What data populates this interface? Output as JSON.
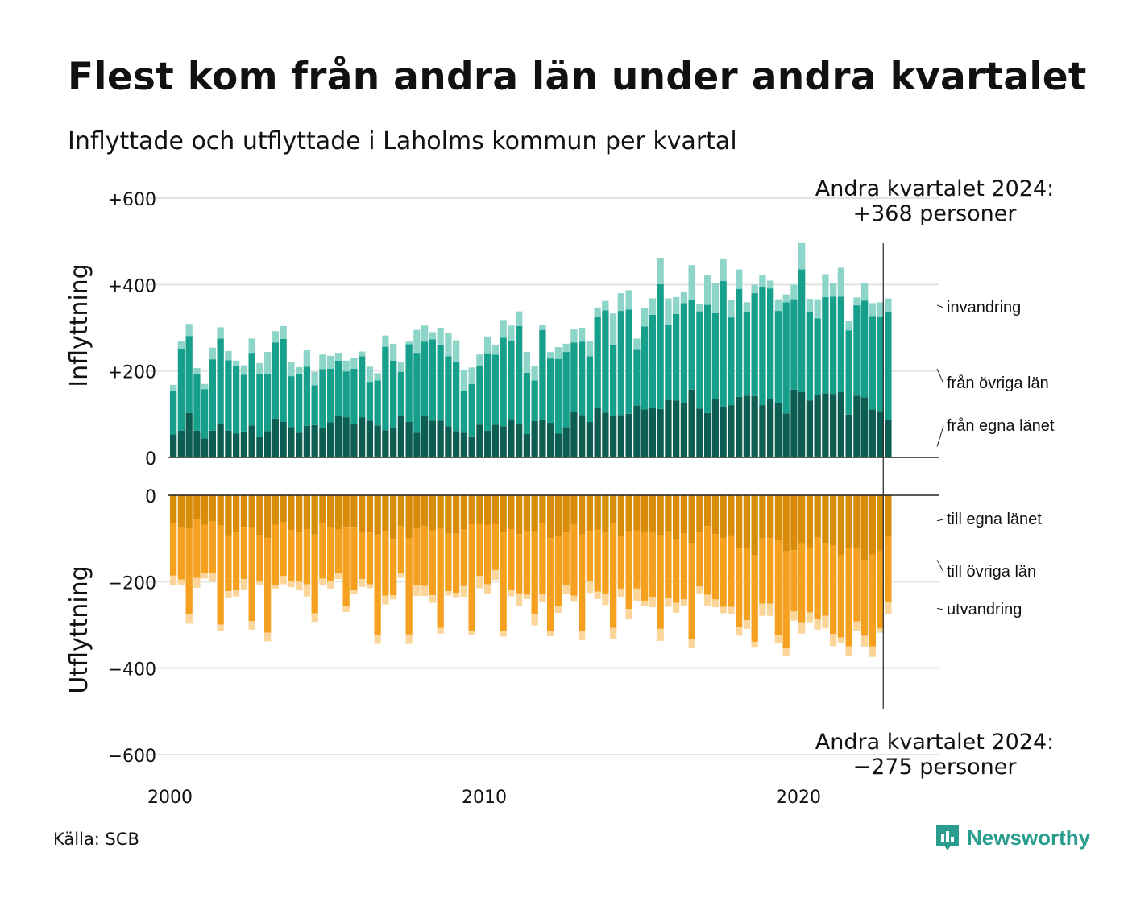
{
  "title": "Flest kom från andra län under andra kvartalet",
  "subtitle": "Inflyttade och utflyttade i Laholms kommun per kvartal",
  "source": "Källa: SCB",
  "brand": "Newsworthy",
  "colors": {
    "in_own": "#0d5e52",
    "in_other": "#16a08c",
    "in_immigration": "#8dd5c8",
    "out_own": "#d98c07",
    "out_other": "#f5a01f",
    "out_emigration": "#fcd59a",
    "grid": "#e3e3e3",
    "brand": "#2a9d8f"
  },
  "chart_data": [
    {
      "type": "bar",
      "stacked": true,
      "axis_label": "Inflyttning",
      "ylim": [
        0,
        600
      ],
      "yticks": [
        0,
        200,
        400,
        600
      ],
      "ytick_labels": [
        "0",
        "+200",
        "+400",
        "+600"
      ],
      "x_start": "2000 Q1",
      "x_end": "2024 Q2",
      "xticks": [
        2000,
        2010,
        2020
      ],
      "annotation": [
        "Andra kvartalet 2024:",
        "+368 personer"
      ],
      "series": [
        {
          "name": "från egna länet",
          "values": [
            53,
            62,
            103,
            62,
            44,
            62,
            77,
            62,
            55,
            60,
            74,
            49,
            61,
            90,
            82,
            70,
            57,
            73,
            75,
            68,
            81,
            97,
            93,
            77,
            93,
            85,
            74,
            63,
            69,
            97,
            82,
            57,
            95,
            85,
            85,
            72,
            61,
            57,
            49,
            76,
            62,
            76,
            72,
            89,
            78,
            54,
            84,
            86,
            80,
            55,
            70,
            105,
            98,
            82,
            114,
            104,
            95,
            98,
            101,
            120,
            111,
            114,
            112,
            133,
            132,
            125,
            157,
            113,
            103,
            136,
            118,
            121,
            140,
            143,
            142,
            121,
            135,
            125,
            102,
            157,
            151,
            132,
            144,
            148,
            147,
            151,
            99,
            143,
            139,
            111,
            107,
            87
          ]
        },
        {
          "name": "från övriga län",
          "values": [
            100,
            190,
            178,
            132,
            114,
            165,
            198,
            163,
            157,
            131,
            168,
            143,
            131,
            176,
            192,
            118,
            137,
            137,
            92,
            136,
            124,
            127,
            106,
            128,
            141,
            90,
            104,
            193,
            155,
            101,
            180,
            185,
            173,
            188,
            176,
            162,
            161,
            96,
            121,
            135,
            179,
            162,
            205,
            181,
            226,
            142,
            94,
            209,
            149,
            173,
            174,
            161,
            170,
            152,
            211,
            236,
            166,
            241,
            241,
            131,
            192,
            216,
            289,
            173,
            200,
            232,
            208,
            225,
            250,
            198,
            290,
            203,
            250,
            194,
            238,
            274,
            256,
            214,
            257,
            209,
            284,
            205,
            178,
            223,
            225,
            221,
            195,
            209,
            224,
            216,
            218,
            250
          ]
        },
        {
          "name": "invandring",
          "values": [
            15,
            18,
            28,
            13,
            12,
            27,
            26,
            21,
            12,
            22,
            33,
            26,
            52,
            26,
            30,
            32,
            15,
            38,
            31,
            34,
            30,
            18,
            25,
            25,
            11,
            35,
            17,
            26,
            39,
            23,
            6,
            53,
            37,
            17,
            39,
            54,
            49,
            50,
            38,
            27,
            39,
            23,
            41,
            35,
            34,
            48,
            33,
            12,
            15,
            27,
            19,
            30,
            32,
            36,
            22,
            22,
            72,
            41,
            45,
            24,
            42,
            38,
            61,
            62,
            39,
            27,
            80,
            16,
            69,
            69,
            51,
            41,
            45,
            22,
            20,
            26,
            18,
            27,
            18,
            34,
            61,
            30,
            44,
            53,
            31,
            67,
            22,
            18,
            40,
            30,
            34,
            31
          ]
        }
      ]
    },
    {
      "type": "bar",
      "stacked": true,
      "axis_label": "Utflyttning",
      "ylim": [
        -600,
        0
      ],
      "yticks": [
        0,
        -200,
        -400,
        -600
      ],
      "ytick_labels": [
        "0",
        "−200",
        "−400",
        "−600"
      ],
      "annotation": [
        "Andra kvartalet 2024:",
        "−275 personer"
      ],
      "series": [
        {
          "name": "till egna länet",
          "values": [
            -64,
            -74,
            -76,
            -56,
            -68,
            -61,
            -70,
            -93,
            -85,
            -73,
            -74,
            -92,
            -99,
            -68,
            -63,
            -80,
            -84,
            -79,
            -91,
            -66,
            -74,
            -79,
            -73,
            -73,
            -87,
            -86,
            -91,
            -82,
            -101,
            -71,
            -100,
            -76,
            -71,
            -81,
            -78,
            -89,
            -89,
            -79,
            -67,
            -67,
            -69,
            -67,
            -84,
            -79,
            -90,
            -82,
            -83,
            -65,
            -99,
            -95,
            -86,
            -67,
            -91,
            -82,
            -80,
            -87,
            -64,
            -95,
            -83,
            -81,
            -87,
            -87,
            -92,
            -83,
            -102,
            -89,
            -110,
            -85,
            -71,
            -90,
            -99,
            -93,
            -123,
            -124,
            -139,
            -100,
            -99,
            -105,
            -130,
            -127,
            -111,
            -121,
            -98,
            -110,
            -117,
            -139,
            -122,
            -124,
            -149,
            -137,
            -130,
            -96
          ]
        },
        {
          "name": "till övriga län",
          "values": [
            -122,
            -121,
            -199,
            -135,
            -113,
            -120,
            -229,
            -129,
            -135,
            -121,
            -217,
            -106,
            -219,
            -139,
            -124,
            -118,
            -116,
            -127,
            -182,
            -127,
            -125,
            -101,
            -183,
            -145,
            -107,
            -120,
            -233,
            -150,
            -130,
            -108,
            -222,
            -133,
            -139,
            -150,
            -229,
            -133,
            -137,
            -131,
            -246,
            -120,
            -137,
            -106,
            -229,
            -141,
            -137,
            -148,
            -192,
            -163,
            -216,
            -161,
            -122,
            -165,
            -222,
            -117,
            -143,
            -142,
            -243,
            -121,
            -180,
            -135,
            -157,
            -148,
            -217,
            -154,
            -147,
            -152,
            -222,
            -126,
            -159,
            -151,
            -159,
            -165,
            -182,
            -165,
            -200,
            -151,
            -152,
            -219,
            -224,
            -142,
            -183,
            -150,
            -188,
            -169,
            -204,
            -190,
            -228,
            -168,
            -176,
            -213,
            -178,
            -152
          ]
        },
        {
          "name": "utvandring",
          "values": [
            -22,
            -13,
            -22,
            -23,
            -12,
            -19,
            -16,
            -16,
            -14,
            -25,
            -20,
            -9,
            -20,
            -9,
            -19,
            -15,
            -20,
            -28,
            -20,
            -14,
            -17,
            -14,
            -14,
            -11,
            -18,
            -9,
            -20,
            -21,
            -10,
            -12,
            -22,
            -24,
            -23,
            -18,
            -13,
            -10,
            -10,
            -25,
            -10,
            -28,
            -22,
            -23,
            -14,
            -14,
            -29,
            -10,
            -26,
            -19,
            -11,
            -16,
            -20,
            -13,
            -22,
            -27,
            -17,
            -25,
            -25,
            -19,
            -22,
            -28,
            -12,
            -24,
            -28,
            -21,
            -23,
            -15,
            -22,
            -16,
            -27,
            -18,
            -15,
            -16,
            -20,
            -20,
            -12,
            -28,
            -28,
            -19,
            -19,
            -21,
            -26,
            -23,
            -25,
            -29,
            -28,
            -13,
            -21,
            -21,
            -25,
            -24,
            -10,
            -27
          ]
        }
      ]
    }
  ]
}
